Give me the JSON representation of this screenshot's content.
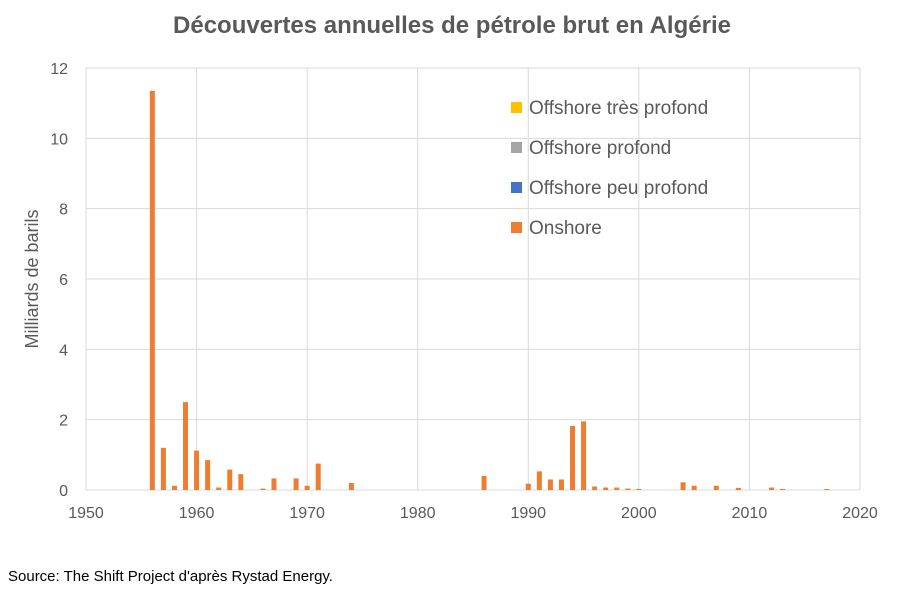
{
  "chart_data": {
    "type": "bar",
    "title": "Découvertes annuelles de pétrole brut en Algérie",
    "xlabel": "",
    "ylabel": "Milliards de barils",
    "xlim": [
      1950,
      2020
    ],
    "ylim": [
      0,
      12
    ],
    "xticks": [
      1950,
      1960,
      1970,
      1980,
      1990,
      2000,
      2010,
      2020
    ],
    "yticks": [
      0,
      2,
      4,
      6,
      8,
      10,
      12
    ],
    "grid": true,
    "legend_position": "top-right",
    "series": [
      {
        "name": "Offshore très profond",
        "color": "#FFC000",
        "x": [],
        "values": []
      },
      {
        "name": "Offshore profond",
        "color": "#A5A5A5",
        "x": [],
        "values": []
      },
      {
        "name": "Offshore peu profond",
        "color": "#4472C4",
        "x": [],
        "values": []
      },
      {
        "name": "Onshore",
        "color": "#ED7D31",
        "x": [
          1956,
          1957,
          1958,
          1959,
          1960,
          1961,
          1962,
          1963,
          1964,
          1966,
          1967,
          1969,
          1970,
          1971,
          1974,
          1986,
          1990,
          1991,
          1992,
          1993,
          1994,
          1995,
          1996,
          1997,
          1998,
          1999,
          2000,
          2004,
          2005,
          2007,
          2009,
          2012,
          2013,
          2017
        ],
        "values": [
          11.35,
          1.2,
          0.12,
          2.5,
          1.12,
          0.85,
          0.07,
          0.58,
          0.45,
          0.04,
          0.33,
          0.33,
          0.12,
          0.75,
          0.2,
          0.4,
          0.18,
          0.53,
          0.3,
          0.3,
          1.82,
          1.95,
          0.1,
          0.07,
          0.07,
          0.04,
          0.03,
          0.22,
          0.12,
          0.12,
          0.06,
          0.07,
          0.03,
          0.03
        ]
      }
    ]
  },
  "source": "Source: The Shift Project d'après Rystad Energy."
}
